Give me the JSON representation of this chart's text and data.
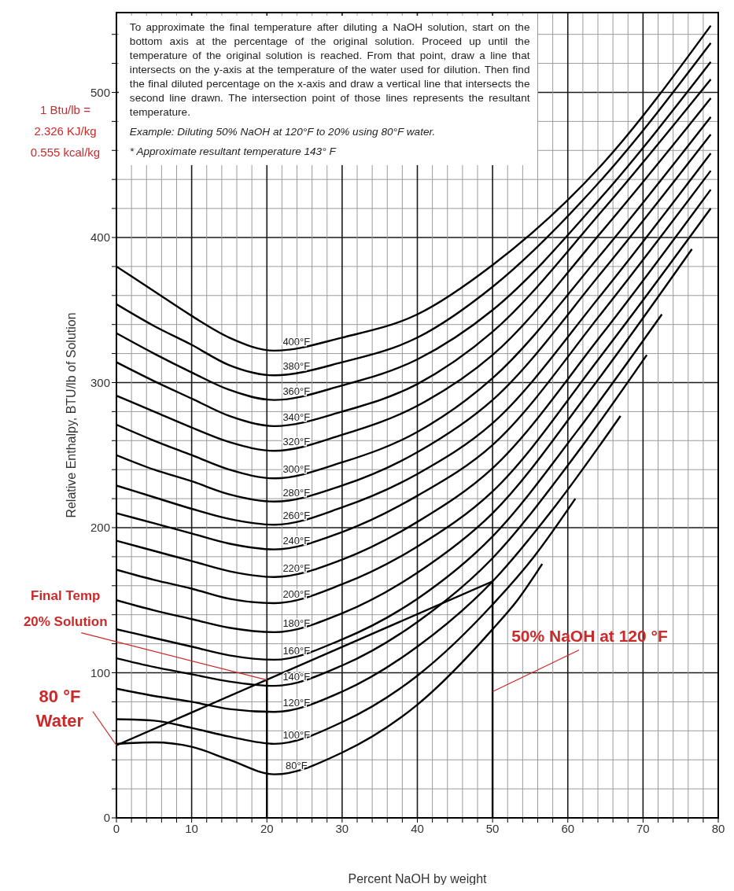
{
  "chart_data": {
    "type": "line",
    "xlabel": "Percent NaOH by weight",
    "ylabel": "Relative Enthalpy, BTU/lb of Solution",
    "xlim": [
      0,
      80
    ],
    "ylim": [
      0,
      555
    ],
    "grid": true,
    "xticks": [
      0,
      {
        "value": 2,
        "label": null
      },
      {
        "value": 4,
        "label": null
      },
      {
        "value": 6,
        "label": null
      },
      {
        "value": 8,
        "label": null
      },
      10,
      {
        "value": 12,
        "label": null
      },
      {
        "value": 14,
        "label": null
      },
      {
        "value": 16,
        "label": null
      },
      {
        "value": 18,
        "label": null
      },
      20,
      {
        "value": 22,
        "label": null
      },
      {
        "value": 24,
        "label": null
      },
      {
        "value": 26,
        "label": null
      },
      {
        "value": 28,
        "label": null
      },
      30,
      {
        "value": 32,
        "label": null
      },
      {
        "value": 34,
        "label": null
      },
      {
        "value": 36,
        "label": null
      },
      {
        "value": 38,
        "label": null
      },
      40,
      {
        "value": 42,
        "label": null
      },
      {
        "value": 44,
        "label": null
      },
      {
        "value": 46,
        "label": null
      },
      {
        "value": 48,
        "label": null
      },
      50,
      {
        "value": 52,
        "label": null
      },
      {
        "value": 54,
        "label": null
      },
      {
        "value": 56,
        "label": null
      },
      {
        "value": 58,
        "label": null
      },
      60,
      {
        "value": 62,
        "label": null
      },
      {
        "value": 64,
        "label": null
      },
      {
        "value": 66,
        "label": null
      },
      {
        "value": 68,
        "label": null
      },
      70,
      {
        "value": 72,
        "label": null
      },
      {
        "value": 74,
        "label": null
      },
      {
        "value": 76,
        "label": null
      },
      {
        "value": 78,
        "label": null
      },
      80
    ],
    "yticks": [
      0,
      {
        "value": 20,
        "label": null
      },
      {
        "value": 40,
        "label": null
      },
      {
        "value": 60,
        "label": null
      },
      {
        "value": 80,
        "label": null
      },
      100,
      {
        "value": 120,
        "label": null
      },
      {
        "value": 140,
        "label": null
      },
      {
        "value": 160,
        "label": null
      },
      {
        "value": 180,
        "label": null
      },
      200,
      {
        "value": 220,
        "label": null
      },
      {
        "value": 240,
        "label": null
      },
      {
        "value": 260,
        "label": null
      },
      {
        "value": 280,
        "label": null
      },
      300,
      {
        "value": 320,
        "label": null
      },
      {
        "value": 340,
        "label": null
      },
      {
        "value": 360,
        "label": null
      },
      {
        "value": 380,
        "label": null
      },
      400,
      {
        "value": 420,
        "label": null
      },
      {
        "value": 440,
        "label": null
      },
      {
        "value": 460,
        "label": null
      },
      {
        "value": 480,
        "label": null
      },
      500,
      {
        "value": 520,
        "label": null
      },
      {
        "value": 540,
        "label": null
      }
    ],
    "series": [
      {
        "name": "400°F",
        "color": "#000000",
        "x": [
          0,
          5,
          10,
          15,
          21,
          30,
          40,
          50,
          64.5,
          79
        ],
        "values": [
          380,
          363,
          346,
          331,
          322,
          331,
          347,
          381,
          450,
          546
        ]
      },
      {
        "name": "380°F",
        "color": "#000000",
        "x": [
          0,
          5,
          10,
          15,
          21,
          30,
          40,
          50,
          64.5,
          79
        ],
        "values": [
          354,
          339,
          326,
          312,
          305,
          314,
          331,
          366,
          440,
          534
        ]
      },
      {
        "name": "360°F",
        "color": "#000000",
        "x": [
          0,
          5,
          10,
          15,
          21,
          30,
          40,
          50,
          64.5,
          79
        ],
        "values": [
          334,
          320,
          307,
          295,
          288,
          298,
          316,
          350,
          428,
          521
        ]
      },
      {
        "name": "340°F",
        "color": "#000000",
        "x": [
          0,
          5,
          10,
          15,
          21,
          30,
          40,
          50,
          64.5,
          79
        ],
        "values": [
          314,
          301,
          289,
          277,
          270,
          280,
          299,
          335,
          418,
          509
        ]
      },
      {
        "name": "320°F",
        "color": "#000000",
        "x": [
          0,
          5,
          10,
          15,
          21,
          30,
          40,
          50,
          64.5,
          79
        ],
        "values": [
          291,
          280,
          269,
          259,
          253,
          264,
          284,
          319,
          404,
          496
        ]
      },
      {
        "name": "300°F",
        "color": "#000000",
        "x": [
          0,
          5,
          10,
          15,
          21,
          30,
          40,
          50,
          64.5,
          79
        ],
        "values": [
          271,
          260,
          250,
          240,
          234,
          245,
          266,
          303,
          389,
          483
        ]
      },
      {
        "name": "280°F",
        "color": "#000000",
        "x": [
          0,
          5,
          10,
          15,
          21,
          30,
          40,
          50,
          64.5,
          79
        ],
        "values": [
          250,
          240,
          232,
          223,
          218,
          229,
          252,
          288,
          376,
          471
        ]
      },
      {
        "name": "260°F",
        "color": "#000000",
        "x": [
          0,
          5,
          10,
          15,
          21,
          30,
          40,
          50,
          64.5,
          79
        ],
        "values": [
          229,
          221,
          213,
          206,
          202,
          214,
          237,
          272,
          361,
          458
        ]
      },
      {
        "name": "240°F",
        "color": "#000000",
        "x": [
          0,
          5,
          10,
          15,
          21,
          30,
          40,
          50,
          64.5,
          79
        ],
        "values": [
          210,
          203,
          196,
          189,
          185,
          197,
          222,
          257,
          348,
          446
        ]
      },
      {
        "name": "220°F",
        "color": "#000000",
        "x": [
          0,
          5,
          10,
          15,
          21,
          30,
          40,
          50,
          64.5,
          79
        ],
        "values": [
          191,
          184,
          177,
          170,
          166,
          178,
          204,
          241,
          333,
          433
        ]
      },
      {
        "name": "200°F",
        "color": "#000000",
        "x": [
          0,
          5,
          10,
          15,
          21,
          30,
          40,
          50,
          64.5,
          79
        ],
        "values": [
          171,
          164,
          158,
          151,
          148,
          161,
          187,
          225,
          319,
          420
        ]
      },
      {
        "name": "180°F",
        "color": "#000000",
        "x": [
          0,
          5,
          10,
          15,
          21,
          30,
          40,
          50,
          63.3,
          76.5
        ],
        "values": [
          150,
          143,
          137,
          131,
          128,
          141,
          169,
          210,
          297,
          392
        ]
      },
      {
        "name": "160°F",
        "color": "#000000",
        "x": [
          0,
          5,
          10,
          15,
          21,
          30,
          40,
          50,
          61.3,
          72.5
        ],
        "values": [
          130,
          124,
          118,
          112,
          109,
          123,
          151,
          194,
          267,
          347
        ]
      },
      {
        "name": "140°F",
        "color": "#000000",
        "x": [
          0,
          5,
          10,
          15,
          21,
          30,
          40,
          50,
          60.3,
          70.5
        ],
        "values": [
          110,
          104,
          99,
          94,
          91,
          105,
          135,
          179,
          245,
          319
        ]
      },
      {
        "name": "120°F",
        "color": "#000000",
        "x": [
          0,
          5,
          10,
          15,
          21,
          30,
          40,
          50,
          58.5,
          67
        ],
        "values": [
          89,
          84,
          80,
          75,
          73,
          87,
          118,
          163,
          216,
          277
        ]
      },
      {
        "name": "100°F",
        "color": "#000000",
        "x": [
          0,
          5,
          10,
          15,
          21,
          30,
          40,
          50,
          55.5,
          61
        ],
        "values": [
          68,
          67,
          62,
          56,
          51,
          66,
          98,
          147,
          180,
          220
        ]
      },
      {
        "name": "80°F",
        "color": "#000000",
        "x": [
          0,
          5,
          10,
          15,
          21,
          30,
          40,
          50,
          53.3,
          56.6
        ],
        "values": [
          51,
          52,
          49,
          40,
          30,
          45,
          78,
          130,
          150,
          175
        ]
      },
      {
        "color": "#000000",
        "x": [
          0,
          50
        ],
        "values": [
          50,
          163
        ]
      },
      {
        "color": "#000000",
        "x": [
          20,
          20
        ],
        "values": [
          0,
          95
        ]
      },
      {
        "color": "#000000",
        "x": [
          50,
          50
        ],
        "values": [
          0,
          163
        ]
      }
    ],
    "annotations": [
      "To approximate the final temperature after diluting a NaOH solution, start on the bottom axis at the percentage of the original solution. Proceed up until the temperature of the original solution is reached. From that point, draw a line that intersects on the y-axis at the temperature of the water used for dilution. Then find the final diluted percentage on the x-axis and draw a vertical line that intersects the second line drawn. The intersection point of those lines represents the resultant temperature.",
      "Example: Diluting 50% NaOH at 120°F to 20% using 80°F water.",
      "* Approximate resultant temperature 143° F",
      "1 Btu/lb =\n2.326 KJ/kg\n0.555 kcal/kg",
      {
        "text": "Final Temp\n20% Solution",
        "x": 20,
        "y": 95
      },
      {
        "text": "80 °F\nWater",
        "x": 0,
        "y": 50
      },
      {
        "text": "50% NaOH at 120 °F",
        "x": 50,
        "y": 87
      }
    ]
  }
}
